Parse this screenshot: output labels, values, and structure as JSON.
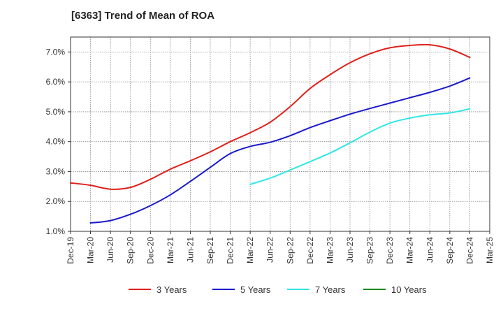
{
  "chart_data": {
    "type": "line",
    "title": "[6363]  Trend of Mean of ROA",
    "xlabel": "",
    "ylabel": "",
    "x_ticks": [
      "Dec-19",
      "Mar-20",
      "Jun-20",
      "Sep-20",
      "Dec-20",
      "Mar-21",
      "Jun-21",
      "Sep-21",
      "Dec-21",
      "Mar-22",
      "Jun-22",
      "Sep-22",
      "Dec-22",
      "Mar-23",
      "Jun-23",
      "Sep-23",
      "Dec-23",
      "Mar-24",
      "Jun-24",
      "Sep-24",
      "Dec-24",
      "Mar-25"
    ],
    "y_ticks": [
      "1.0%",
      "2.0%",
      "3.0%",
      "4.0%",
      "5.0%",
      "6.0%",
      "7.0%"
    ],
    "ylim": [
      1.0,
      7.5
    ],
    "grid": true,
    "legend_position": "bottom",
    "series": [
      {
        "name": "3 Years",
        "color": "#e0201b",
        "x": [
          "Dec-19",
          "Mar-20",
          "Jun-20",
          "Sep-20",
          "Dec-20",
          "Mar-21",
          "Jun-21",
          "Sep-21",
          "Dec-21",
          "Mar-22",
          "Jun-22",
          "Sep-22",
          "Dec-22",
          "Mar-23",
          "Jun-23",
          "Sep-23",
          "Dec-23",
          "Mar-24",
          "Jun-24",
          "Sep-24",
          "Dec-24"
        ],
        "values": [
          2.62,
          2.54,
          2.41,
          2.47,
          2.74,
          3.08,
          3.36,
          3.66,
          4.0,
          4.3,
          4.65,
          5.17,
          5.78,
          6.24,
          6.64,
          6.94,
          7.14,
          7.22,
          7.24,
          7.1,
          6.82
        ]
      },
      {
        "name": "5 Years",
        "color": "#1a1acc",
        "x": [
          "Mar-20",
          "Jun-20",
          "Sep-20",
          "Dec-20",
          "Mar-21",
          "Jun-21",
          "Sep-21",
          "Dec-21",
          "Mar-22",
          "Jun-22",
          "Sep-22",
          "Dec-22",
          "Mar-23",
          "Jun-23",
          "Sep-23",
          "Dec-23",
          "Mar-24",
          "Jun-24",
          "Sep-24",
          "Dec-24"
        ],
        "values": [
          1.28,
          1.36,
          1.57,
          1.86,
          2.22,
          2.67,
          3.14,
          3.6,
          3.84,
          3.98,
          4.2,
          4.47,
          4.7,
          4.92,
          5.11,
          5.29,
          5.47,
          5.65,
          5.86,
          6.13
        ]
      },
      {
        "name": "7 Years",
        "color": "#33e5e5",
        "x": [
          "Mar-22",
          "Jun-22",
          "Sep-22",
          "Dec-22",
          "Mar-23",
          "Jun-23",
          "Sep-23",
          "Dec-23",
          "Mar-24",
          "Jun-24",
          "Sep-24",
          "Dec-24"
        ],
        "values": [
          2.57,
          2.78,
          3.05,
          3.33,
          3.62,
          3.96,
          4.32,
          4.62,
          4.79,
          4.9,
          4.96,
          5.1
        ]
      },
      {
        "name": "10 Years",
        "color": "#1a8c1a",
        "x": [],
        "values": []
      }
    ]
  }
}
